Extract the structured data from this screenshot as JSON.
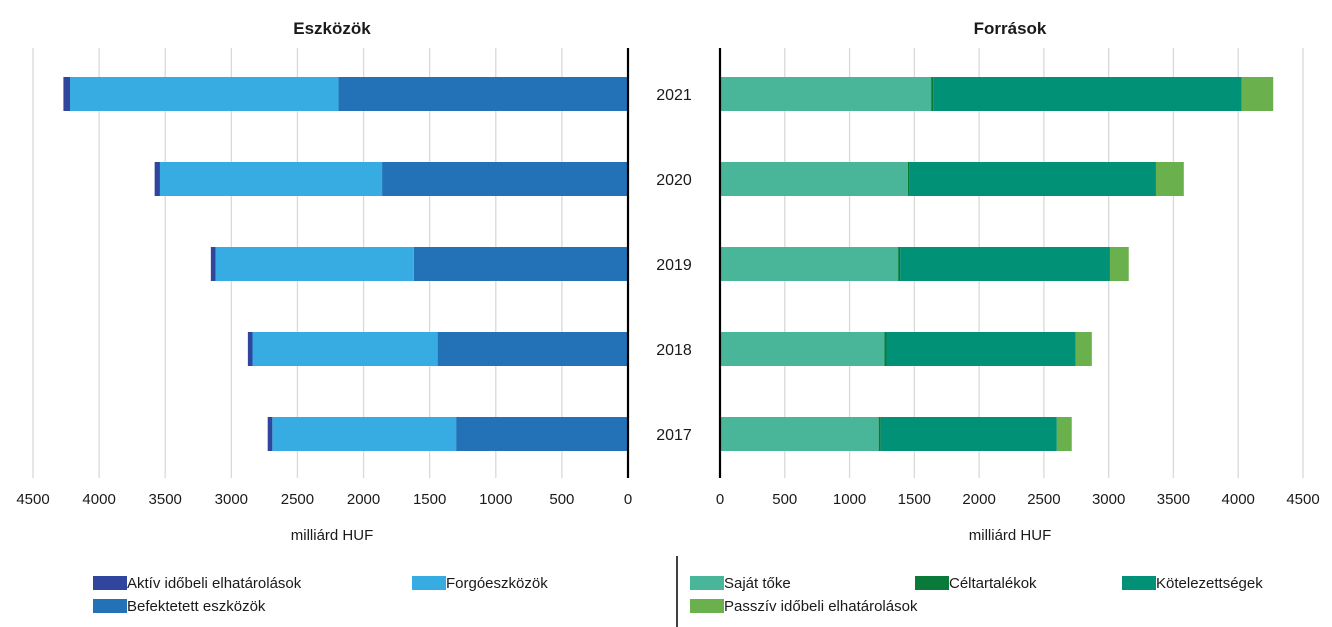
{
  "chart_data": [
    {
      "type": "bar",
      "orientation": "horizontal",
      "stacked": true,
      "x_direction": "reversed",
      "title": "Eszközök",
      "xlabel": "milliárd HUF",
      "ylabel": "",
      "xlim": [
        0,
        4500
      ],
      "x_ticks": [
        "4500",
        "4000",
        "3500",
        "3000",
        "2500",
        "2000",
        "1500",
        "1000",
        "500",
        "0"
      ],
      "grid": true,
      "legend_position": "bottom",
      "categories": [
        "2021",
        "2020",
        "2019",
        "2018",
        "2017"
      ],
      "series": [
        {
          "name": "Befektetett eszközök",
          "color": "#2372b8",
          "values": [
            2190,
            1860,
            1620,
            1440,
            1300
          ]
        },
        {
          "name": "Forgóeszközök",
          "color": "#36ace2",
          "values": [
            2030,
            1680,
            1500,
            1400,
            1390
          ]
        },
        {
          "name": "Aktív időbeli elhatárolások",
          "color": "#30459d",
          "values": [
            50,
            40,
            35,
            35,
            35
          ]
        }
      ]
    },
    {
      "type": "bar",
      "orientation": "horizontal",
      "stacked": true,
      "title": "Források",
      "xlabel": "milliárd HUF",
      "ylabel": "",
      "xlim": [
        0,
        4500
      ],
      "x_ticks": [
        "0",
        "500",
        "1000",
        "1500",
        "2000",
        "2500",
        "3000",
        "3500",
        "4000",
        "4500"
      ],
      "grid": true,
      "legend_position": "bottom",
      "categories": [
        "2021",
        "2020",
        "2019",
        "2018",
        "2017"
      ],
      "series": [
        {
          "name": "Saját tőke",
          "color": "#49b69a",
          "values": [
            1630,
            1450,
            1375,
            1270,
            1225
          ]
        },
        {
          "name": "Céltartalékok",
          "color": "#0a7a3a",
          "values": [
            15,
            15,
            15,
            15,
            15
          ]
        },
        {
          "name": "Kötelezettségek",
          "color": "#009177",
          "values": [
            2380,
            1900,
            1620,
            1460,
            1360
          ]
        },
        {
          "name": "Passzív időbeli elhatárolások",
          "color": "#6ab04c",
          "values": [
            245,
            215,
            145,
            125,
            115
          ]
        }
      ]
    }
  ]
}
